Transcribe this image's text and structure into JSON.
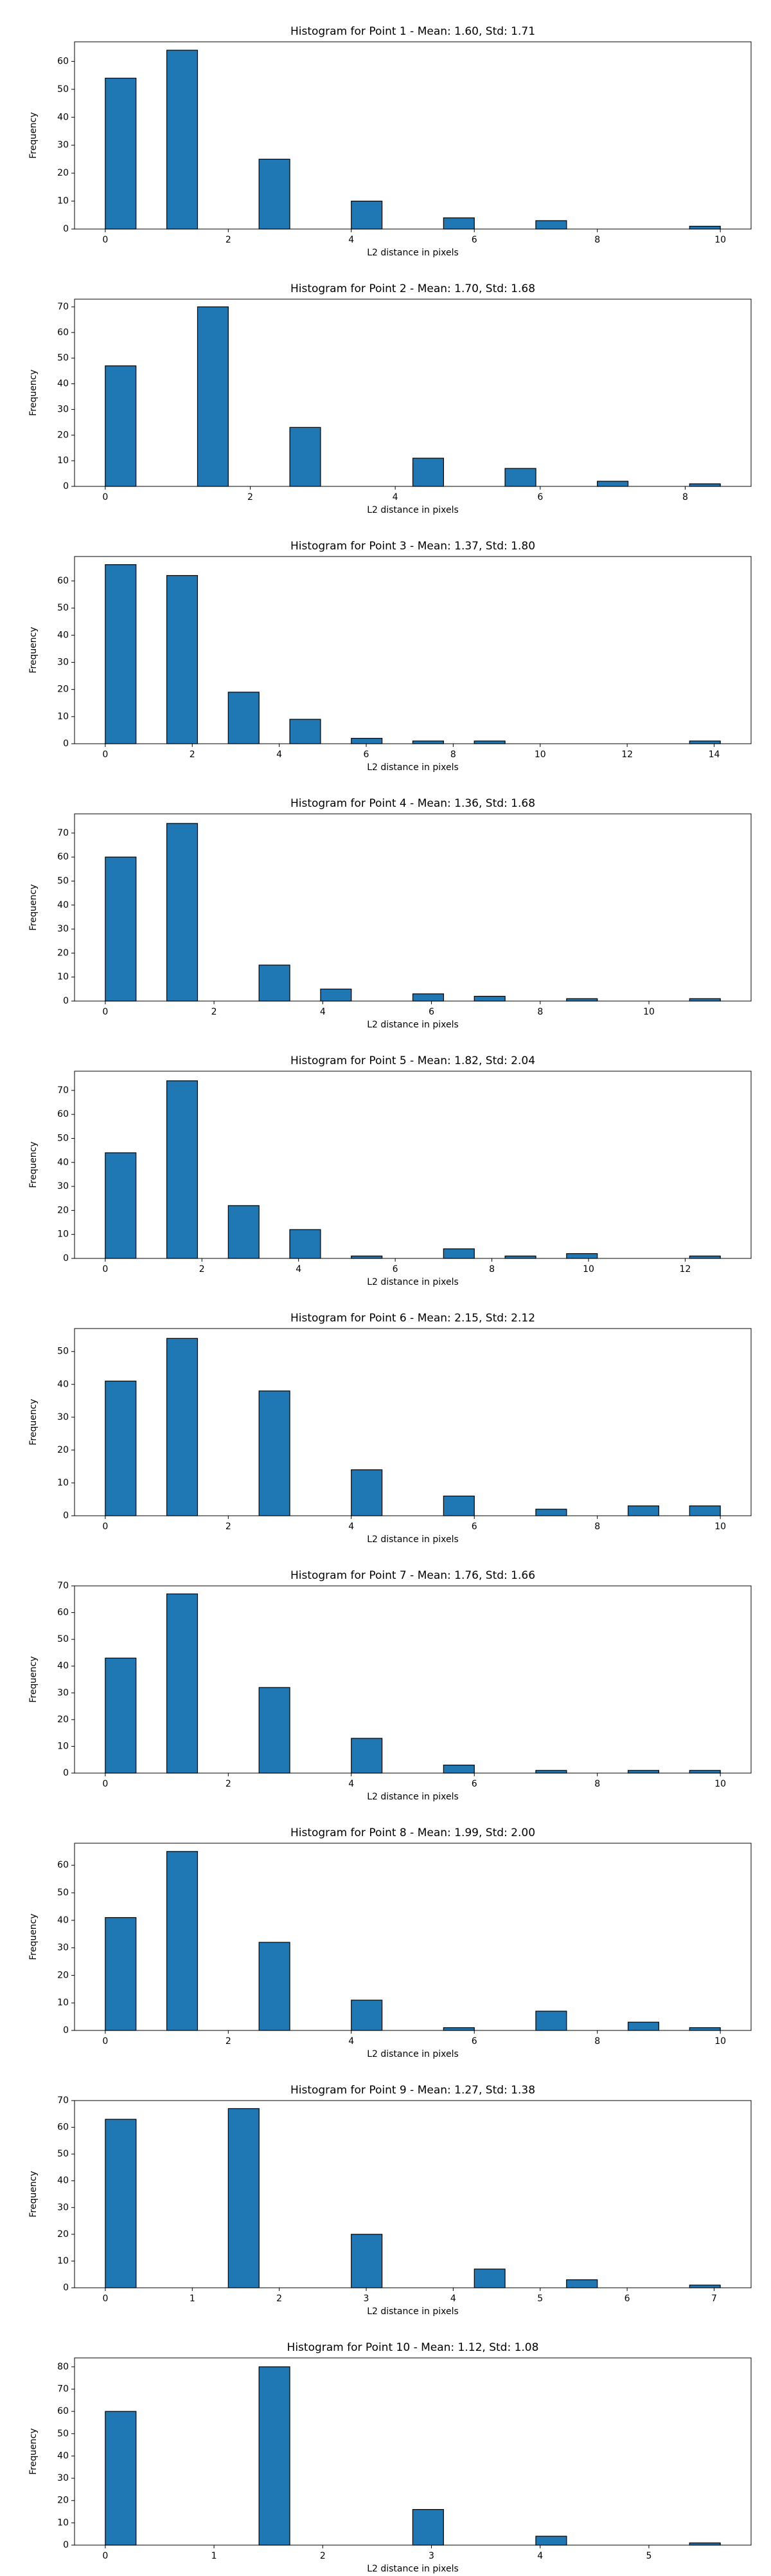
{
  "chart_data": [
    {
      "type": "histogram",
      "title": "Histogram for Point 1 - Mean: 1.60, Std: 1.71",
      "xlabel": "L2 distance in pixels",
      "ylabel": "Frequency",
      "color": "#1f77b4",
      "edgecolor": "#000000",
      "bins": [
        0,
        0.5,
        1,
        1.5,
        2,
        2.5,
        3,
        3.5,
        4,
        4.5,
        5,
        5.5,
        6,
        6.5,
        7,
        7.5,
        8,
        8.5,
        9,
        9.5,
        10
      ],
      "values": [
        54,
        0,
        64,
        0,
        0,
        25,
        0,
        0,
        10,
        0,
        0,
        4,
        0,
        0,
        3,
        0,
        0,
        0,
        0,
        1
      ],
      "xlim": [
        -0.5,
        10.5
      ],
      "xticks": [
        0,
        2,
        4,
        6,
        8,
        10
      ],
      "ylim": [
        0,
        67
      ],
      "yticks": [
        0,
        10,
        20,
        30,
        40,
        50,
        60
      ]
    },
    {
      "type": "histogram",
      "title": "Histogram for Point 2 - Mean: 1.70, Std: 1.68",
      "xlabel": "L2 distance in pixels",
      "ylabel": "Frequency",
      "color": "#1f77b4",
      "edgecolor": "#000000",
      "bins": [
        0,
        0.424,
        0.849,
        1.273,
        1.697,
        2.121,
        2.546,
        2.97,
        3.394,
        3.818,
        4.243,
        4.667,
        5.091,
        5.515,
        5.94,
        6.364,
        6.788,
        7.212,
        7.637,
        8.061,
        8.485
      ],
      "values": [
        47,
        0,
        0,
        70,
        0,
        0,
        23,
        0,
        0,
        0,
        11,
        0,
        0,
        7,
        0,
        0,
        2,
        0,
        0,
        1
      ],
      "xlim": [
        -0.424,
        8.909
      ],
      "xticks": [
        0,
        2,
        4,
        6,
        8
      ],
      "ylim": [
        0,
        73
      ],
      "yticks": [
        0,
        10,
        20,
        30,
        40,
        50,
        60,
        70
      ]
    },
    {
      "type": "histogram",
      "title": "Histogram for Point 3 - Mean: 1.37, Std: 1.80",
      "xlabel": "L2 distance in pixels",
      "ylabel": "Frequency",
      "color": "#1f77b4",
      "edgecolor": "#000000",
      "bins": [
        0,
        0.707,
        1.414,
        2.121,
        2.828,
        3.536,
        4.243,
        4.95,
        5.657,
        6.364,
        7.071,
        7.778,
        8.485,
        9.192,
        9.899,
        10.607,
        11.314,
        12.021,
        12.728,
        13.435,
        14.142
      ],
      "values": [
        66,
        0,
        62,
        0,
        19,
        0,
        9,
        0,
        2,
        0,
        1,
        0,
        1,
        0,
        0,
        0,
        0,
        0,
        0,
        1
      ],
      "xlim": [
        -0.707,
        14.849
      ],
      "xticks": [
        0,
        2,
        4,
        6,
        8,
        10,
        12,
        14
      ],
      "ylim": [
        0,
        69
      ],
      "yticks": [
        0,
        10,
        20,
        30,
        40,
        50,
        60
      ]
    },
    {
      "type": "histogram",
      "title": "Histogram for Point 4 - Mean: 1.36, Std: 1.68",
      "xlabel": "L2 distance in pixels",
      "ylabel": "Frequency",
      "color": "#1f77b4",
      "edgecolor": "#000000",
      "bins": [
        0,
        0.566,
        1.131,
        1.697,
        2.263,
        2.828,
        3.394,
        3.96,
        4.525,
        5.091,
        5.657,
        6.223,
        6.788,
        7.354,
        7.92,
        8.485,
        9.051,
        9.617,
        10.182,
        10.748,
        11.314
      ],
      "values": [
        60,
        0,
        74,
        0,
        0,
        15,
        0,
        5,
        0,
        0,
        3,
        0,
        2,
        0,
        0,
        1,
        0,
        0,
        0,
        1
      ],
      "xlim": [
        -0.566,
        11.879
      ],
      "xticks": [
        0,
        2,
        4,
        6,
        8,
        10
      ],
      "ylim": [
        0,
        78
      ],
      "yticks": [
        0,
        10,
        20,
        30,
        40,
        50,
        60,
        70
      ]
    },
    {
      "type": "histogram",
      "title": "Histogram for Point 5 - Mean: 1.82, Std: 2.04",
      "xlabel": "L2 distance in pixels",
      "ylabel": "Frequency",
      "color": "#1f77b4",
      "edgecolor": "#000000",
      "bins": [
        0,
        0.636,
        1.273,
        1.909,
        2.546,
        3.182,
        3.818,
        4.455,
        5.091,
        5.728,
        6.364,
        7.0,
        7.637,
        8.273,
        8.91,
        9.546,
        10.182,
        10.819,
        11.455,
        12.092,
        12.728
      ],
      "values": [
        44,
        0,
        74,
        0,
        22,
        0,
        12,
        0,
        1,
        0,
        0,
        4,
        0,
        1,
        0,
        2,
        0,
        0,
        0,
        1
      ],
      "xlim": [
        -0.636,
        13.364
      ],
      "xticks": [
        0,
        2,
        4,
        6,
        8,
        10,
        12
      ],
      "ylim": [
        0,
        78
      ],
      "yticks": [
        0,
        10,
        20,
        30,
        40,
        50,
        60,
        70
      ]
    },
    {
      "type": "histogram",
      "title": "Histogram for Point 6 - Mean: 2.15, Std: 2.12",
      "xlabel": "L2 distance in pixels",
      "ylabel": "Frequency",
      "color": "#1f77b4",
      "edgecolor": "#000000",
      "bins": [
        0,
        0.5,
        1,
        1.5,
        2,
        2.5,
        3,
        3.5,
        4,
        4.5,
        5,
        5.5,
        6,
        6.5,
        7,
        7.5,
        8,
        8.5,
        9,
        9.5,
        10
      ],
      "values": [
        41,
        0,
        54,
        0,
        0,
        38,
        0,
        0,
        14,
        0,
        0,
        6,
        0,
        0,
        2,
        0,
        0,
        3,
        0,
        3
      ],
      "xlim": [
        -0.5,
        10.5
      ],
      "xticks": [
        0,
        2,
        4,
        6,
        8,
        10
      ],
      "ylim": [
        0,
        57
      ],
      "yticks": [
        0,
        10,
        20,
        30,
        40,
        50
      ]
    },
    {
      "type": "histogram",
      "title": "Histogram for Point 7 - Mean: 1.76, Std: 1.66",
      "xlabel": "L2 distance in pixels",
      "ylabel": "Frequency",
      "color": "#1f77b4",
      "edgecolor": "#000000",
      "bins": [
        0,
        0.5,
        1,
        1.5,
        2,
        2.5,
        3,
        3.5,
        4,
        4.5,
        5,
        5.5,
        6,
        6.5,
        7,
        7.5,
        8,
        8.5,
        9,
        9.5,
        10
      ],
      "values": [
        43,
        0,
        67,
        0,
        0,
        32,
        0,
        0,
        13,
        0,
        0,
        3,
        0,
        0,
        1,
        0,
        0,
        1,
        0,
        1
      ],
      "xlim": [
        -0.5,
        10.5
      ],
      "xticks": [
        0,
        2,
        4,
        6,
        8,
        10
      ],
      "ylim": [
        0,
        70
      ],
      "yticks": [
        0,
        10,
        20,
        30,
        40,
        50,
        60,
        70
      ]
    },
    {
      "type": "histogram",
      "title": "Histogram for Point 8 - Mean: 1.99, Std: 2.00",
      "xlabel": "L2 distance in pixels",
      "ylabel": "Frequency",
      "color": "#1f77b4",
      "edgecolor": "#000000",
      "bins": [
        0,
        0.5,
        1,
        1.5,
        2,
        2.5,
        3,
        3.5,
        4,
        4.5,
        5,
        5.5,
        6,
        6.5,
        7,
        7.5,
        8,
        8.5,
        9,
        9.5,
        10
      ],
      "values": [
        41,
        0,
        65,
        0,
        0,
        32,
        0,
        0,
        11,
        0,
        0,
        1,
        0,
        0,
        7,
        0,
        0,
        3,
        0,
        1
      ],
      "xlim": [
        -0.5,
        10.5
      ],
      "xticks": [
        0,
        2,
        4,
        6,
        8,
        10
      ],
      "ylim": [
        0,
        68
      ],
      "yticks": [
        0,
        10,
        20,
        30,
        40,
        50,
        60
      ]
    },
    {
      "type": "histogram",
      "title": "Histogram for Point 9 - Mean: 1.27, Std: 1.38",
      "xlabel": "L2 distance in pixels",
      "ylabel": "Frequency",
      "color": "#1f77b4",
      "edgecolor": "#000000",
      "bins": [
        0,
        0.354,
        0.707,
        1.061,
        1.414,
        1.768,
        2.121,
        2.475,
        2.828,
        3.182,
        3.536,
        3.889,
        4.243,
        4.596,
        4.95,
        5.303,
        5.657,
        6.01,
        6.364,
        6.718,
        7.071
      ],
      "values": [
        63,
        0,
        0,
        0,
        67,
        0,
        0,
        0,
        20,
        0,
        0,
        0,
        7,
        0,
        0,
        3,
        0,
        0,
        0,
        1
      ],
      "xlim": [
        -0.354,
        7.425
      ],
      "xticks": [
        0,
        1,
        2,
        3,
        4,
        5,
        6,
        7
      ],
      "ylim": [
        0,
        70
      ],
      "yticks": [
        0,
        10,
        20,
        30,
        40,
        50,
        60,
        70
      ]
    },
    {
      "type": "histogram",
      "title": "Histogram for Point 10 - Mean: 1.12, Std: 1.08",
      "xlabel": "L2 distance in pixels",
      "ylabel": "Frequency",
      "color": "#1f77b4",
      "edgecolor": "#000000",
      "bins": [
        0,
        0.283,
        0.566,
        0.849,
        1.131,
        1.414,
        1.697,
        1.98,
        2.263,
        2.546,
        2.828,
        3.111,
        3.394,
        3.677,
        3.96,
        4.243,
        4.525,
        4.808,
        5.091,
        5.374,
        5.657
      ],
      "values": [
        60,
        0,
        0,
        0,
        0,
        80,
        0,
        0,
        0,
        0,
        16,
        0,
        0,
        0,
        4,
        0,
        0,
        0,
        0,
        1
      ],
      "xlim": [
        -0.283,
        5.94
      ],
      "xticks": [
        0,
        1,
        2,
        3,
        4,
        5
      ],
      "ylim": [
        0,
        84
      ],
      "yticks": [
        0,
        10,
        20,
        30,
        40,
        50,
        60,
        70,
        80
      ]
    }
  ]
}
